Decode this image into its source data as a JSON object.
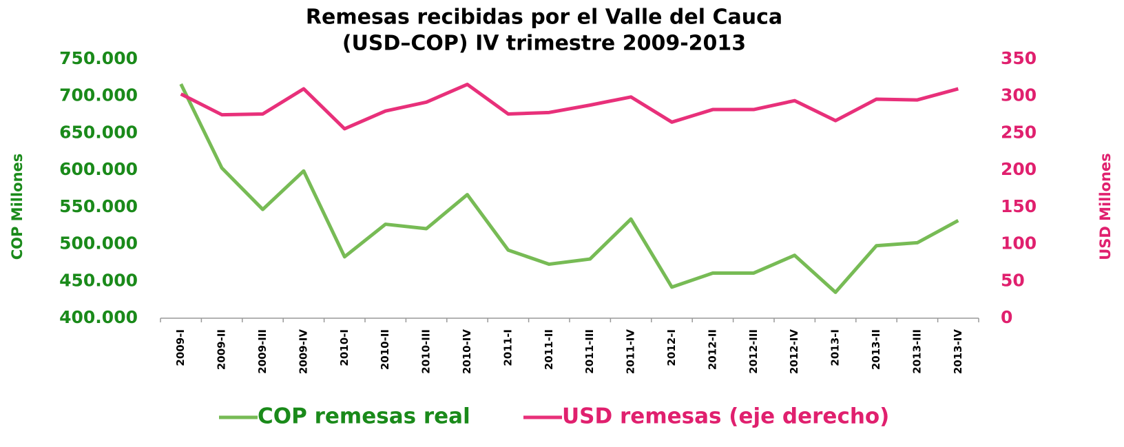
{
  "chart_data": {
    "type": "line",
    "title": [
      "Remesas recibidas por el Valle del Cauca",
      "(USD–COP) IV trimestre 2009-2013"
    ],
    "ylabel": "COP Millones",
    "y2label": "USD Millones",
    "categories": [
      "2009-I",
      "2009-II",
      "2009-III",
      "2009-IV",
      "2010-I",
      "2010-II",
      "2010-III",
      "2010-IV",
      "2011-I",
      "2011-II",
      "2011-III",
      "2011-IV",
      "2012-I",
      "2012-II",
      "2012-III",
      "2012-IV",
      "2013-I",
      "2013-II",
      "2013-III",
      "2013-IV"
    ],
    "series": [
      {
        "name": "COP remesas real",
        "color": "#77bb55",
        "axis": "y",
        "values": [
          716500,
          603000,
          547000,
          599000,
          483000,
          527000,
          521000,
          567000,
          492000,
          473000,
          480000,
          534000,
          442000,
          461000,
          461000,
          485000,
          435000,
          498000,
          502000,
          532000
        ]
      },
      {
        "name": "USD remesas (eje derecho)",
        "color": "#e8307a",
        "axis": "y2",
        "values": [
          303,
          275,
          276,
          310,
          256,
          280,
          292,
          316,
          276,
          278,
          288,
          299,
          265,
          282,
          282,
          294,
          267,
          296,
          295,
          310
        ]
      }
    ],
    "ylim": [
      400000,
      750000
    ],
    "yticks": [
      {
        "value": 400000,
        "label": "400.000"
      },
      {
        "value": 450000,
        "label": "450.000"
      },
      {
        "value": 500000,
        "label": "500.000"
      },
      {
        "value": 550000,
        "label": "550.000"
      },
      {
        "value": 600000,
        "label": "600.000"
      },
      {
        "value": 650000,
        "label": "650.000"
      },
      {
        "value": 700000,
        "label": "700.000"
      },
      {
        "value": 750000,
        "label": "750.000"
      }
    ],
    "y2lim": [
      0,
      350
    ],
    "y2ticks": [
      0,
      50,
      100,
      150,
      200,
      250,
      300,
      350
    ],
    "ycolor": "#1a8a1a",
    "y2color": "#e0206e",
    "legend": "bottom"
  }
}
